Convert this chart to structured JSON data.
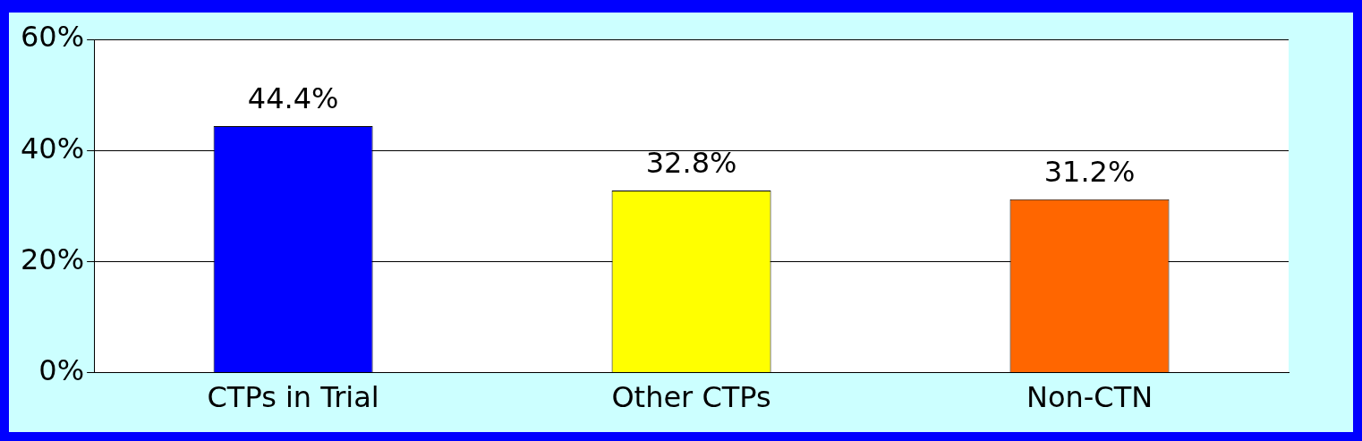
{
  "chart_data": {
    "type": "bar",
    "categories": [
      "CTPs in Trial",
      "Other CTPs",
      "Non-CTN"
    ],
    "values": [
      44.4,
      32.8,
      31.2
    ],
    "colors": [
      "#0000ff",
      "#ffff00",
      "#ff6600"
    ],
    "value_labels": [
      "44.4%",
      "32.8%",
      "31.2%"
    ],
    "ylim": [
      0,
      60
    ],
    "yticks": [
      {
        "value": 0,
        "label": "0%"
      },
      {
        "value": 20,
        "label": "20%"
      },
      {
        "value": 40,
        "label": "40%"
      },
      {
        "value": 60,
        "label": "60%"
      }
    ],
    "grid": "y",
    "legend": false
  }
}
